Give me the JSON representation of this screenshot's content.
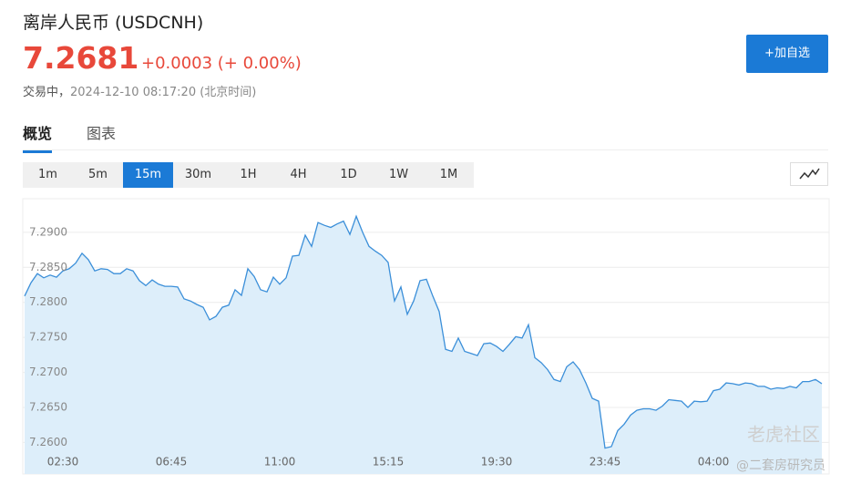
{
  "header": {
    "title": "离岸人民币  (USDCNH)",
    "price": "7.2681",
    "change": "+0.0003 (+ 0.00%)",
    "status": "交易中，",
    "timestamp": "2024-12-10 08:17:20 (北京时间)",
    "watchlist_button": "+加自选"
  },
  "tabs": [
    "概览",
    "图表"
  ],
  "active_tab": "概览",
  "periods": [
    "1m",
    "5m",
    "15m",
    "30m",
    "1H",
    "4H",
    "1D",
    "1W",
    "1M"
  ],
  "active_period": "15m",
  "watermark": [
    "老虎社区",
    "@二套房研究员"
  ],
  "chart_data": {
    "type": "area",
    "categories": [
      null,
      null,
      null,
      null,
      null,
      null,
      "02:30",
      null,
      null,
      null,
      null,
      null,
      null,
      null,
      null,
      null,
      null,
      null,
      null,
      null,
      null,
      null,
      null,
      "06:45",
      null,
      null,
      null,
      null,
      null,
      null,
      null,
      null,
      null,
      null,
      null,
      null,
      null,
      null,
      null,
      null,
      "11:00",
      null,
      null,
      null,
      null,
      null,
      null,
      null,
      null,
      null,
      null,
      null,
      null,
      null,
      null,
      null,
      null,
      "15:15",
      null,
      null,
      null,
      null,
      null,
      null,
      null,
      null,
      null,
      null,
      null,
      null,
      null,
      null,
      null,
      null,
      "19:30",
      null,
      null,
      null,
      null,
      null,
      null,
      null,
      null,
      null,
      null,
      null,
      null,
      null,
      null,
      null,
      null,
      "23:45",
      null,
      null,
      null,
      null,
      null,
      null,
      null,
      null,
      null,
      null,
      null,
      null,
      null,
      null,
      null,
      null,
      "04:00",
      null,
      null,
      null,
      null,
      null,
      null,
      null,
      null,
      null,
      null,
      null,
      null,
      null,
      null,
      null,
      null,
      null
    ],
    "values": [
      7.2809,
      7.2828,
      7.2841,
      7.2835,
      7.2839,
      7.2836,
      7.2845,
      7.2848,
      7.2856,
      7.287,
      7.2861,
      7.2845,
      7.2848,
      7.2847,
      7.2841,
      7.2841,
      7.2848,
      7.2845,
      7.2831,
      7.2824,
      7.2832,
      7.2826,
      7.2823,
      7.2823,
      7.2822,
      7.2805,
      7.2802,
      7.2797,
      7.2793,
      7.2775,
      7.278,
      7.2793,
      7.2796,
      7.2818,
      7.281,
      7.2848,
      7.2837,
      7.2818,
      7.2815,
      7.2836,
      7.2826,
      7.2835,
      7.2866,
      7.2867,
      7.2896,
      7.288,
      7.2914,
      7.291,
      7.2907,
      7.2912,
      7.2916,
      7.2897,
      7.2923,
      7.29,
      7.288,
      7.2873,
      7.2867,
      7.2857,
      7.2802,
      7.2822,
      7.2783,
      7.2802,
      7.2831,
      7.2833,
      7.2809,
      7.2787,
      7.2733,
      7.273,
      7.2749,
      7.273,
      7.2727,
      7.2724,
      7.2741,
      7.2742,
      7.2737,
      7.273,
      7.274,
      7.2751,
      7.2749,
      7.2768,
      7.2721,
      7.2714,
      7.2704,
      7.269,
      7.2687,
      7.2708,
      7.2715,
      7.2704,
      7.2685,
      7.2663,
      7.2659,
      7.2592,
      7.2594,
      7.2617,
      7.2626,
      7.2639,
      7.2646,
      7.2648,
      7.2648,
      7.2646,
      7.2652,
      7.2661,
      7.266,
      7.2659,
      7.265,
      7.2659,
      7.2658,
      7.2659,
      7.2674,
      7.2676,
      7.2685,
      7.2684,
      7.2682,
      7.2685,
      7.2684,
      7.268,
      7.268,
      7.2676,
      7.2678,
      7.2677,
      7.268,
      7.2678,
      7.2687,
      7.2687,
      7.269,
      7.2684
    ],
    "color": "#3b8fd9",
    "fill_color": "#ddeefa",
    "ylim": [
      7.2555,
      7.2948
    ],
    "yticks": [
      {
        "value": 7.26,
        "label": "7.2600"
      },
      {
        "value": 7.265,
        "label": "7.2650"
      },
      {
        "value": 7.27,
        "label": "7.2700"
      },
      {
        "value": 7.275,
        "label": "7.2750"
      },
      {
        "value": 7.28,
        "label": "7.2800"
      },
      {
        "value": 7.285,
        "label": "7.2850"
      },
      {
        "value": 7.29,
        "label": "7.2900"
      }
    ],
    "grid": true
  }
}
